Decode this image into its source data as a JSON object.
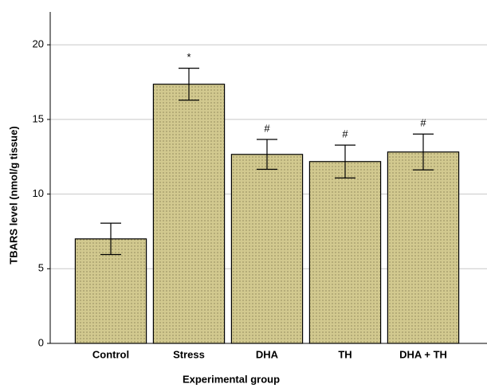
{
  "chart_data": {
    "type": "bar",
    "y_label": "TBARS level (nmol/g tissue)",
    "x_label": "Experimental group",
    "categories": [
      "Control",
      "Stress",
      "DHA",
      "TH",
      "DHA + TH"
    ],
    "values": [
      7.0,
      17.36,
      12.66,
      12.18,
      12.82
    ],
    "errors": [
      1.05,
      1.07,
      1.0,
      1.1,
      1.2
    ],
    "annotations": [
      null,
      "*",
      "#",
      "#",
      "#"
    ],
    "color": "#d2c98f",
    "ylim": [
      0,
      22.2
    ],
    "yticks": [
      0,
      5,
      10,
      15,
      20
    ],
    "grid": true
  }
}
